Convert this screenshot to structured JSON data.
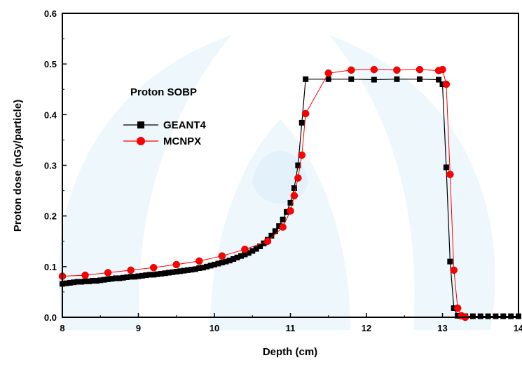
{
  "chart_data": {
    "type": "line",
    "title": "",
    "annotation": "Proton SOBP",
    "xlabel": "Depth (cm)",
    "ylabel": "Proton dose (nGy/particle)",
    "xlim": [
      8,
      14
    ],
    "ylim": [
      0,
      0.6
    ],
    "x_ticks": [
      8,
      9,
      10,
      11,
      12,
      13,
      14
    ],
    "x_tick_labels": [
      "8",
      "9",
      "10",
      "11",
      "12",
      "13",
      "14"
    ],
    "y_ticks": [
      0,
      0.1,
      0.2,
      0.3,
      0.4,
      0.5,
      0.6
    ],
    "y_tick_labels": [
      "0.0",
      "0.1",
      "0.2",
      "0.3",
      "0.4",
      "0.5",
      "0.6"
    ],
    "grid": false,
    "legend_position": "upper-left",
    "series": [
      {
        "name": "GEANT4",
        "color": "#000000",
        "marker": "square",
        "x": [
          8.0,
          8.05,
          8.1,
          8.15,
          8.2,
          8.25,
          8.3,
          8.35,
          8.4,
          8.45,
          8.5,
          8.55,
          8.6,
          8.65,
          8.7,
          8.75,
          8.8,
          8.85,
          8.9,
          8.95,
          9.0,
          9.05,
          9.1,
          9.15,
          9.2,
          9.25,
          9.3,
          9.35,
          9.4,
          9.45,
          9.5,
          9.55,
          9.6,
          9.65,
          9.7,
          9.75,
          9.8,
          9.85,
          9.9,
          9.95,
          10.0,
          10.05,
          10.1,
          10.15,
          10.2,
          10.25,
          10.3,
          10.35,
          10.4,
          10.45,
          10.5,
          10.55,
          10.6,
          10.65,
          10.7,
          10.75,
          10.8,
          10.85,
          10.9,
          10.95,
          11.0,
          11.05,
          11.1,
          11.15,
          11.2,
          11.5,
          11.8,
          12.1,
          12.4,
          12.7,
          12.95,
          13.0,
          13.05,
          13.1,
          13.15,
          13.2,
          13.25,
          13.3,
          13.4,
          13.5,
          13.6,
          13.7,
          13.8,
          13.9,
          14.0
        ],
        "values": [
          0.066,
          0.067,
          0.068,
          0.069,
          0.07,
          0.07,
          0.071,
          0.071,
          0.072,
          0.072,
          0.073,
          0.074,
          0.075,
          0.076,
          0.077,
          0.077,
          0.078,
          0.079,
          0.08,
          0.08,
          0.081,
          0.082,
          0.083,
          0.084,
          0.084,
          0.085,
          0.086,
          0.087,
          0.088,
          0.089,
          0.09,
          0.091,
          0.092,
          0.093,
          0.094,
          0.095,
          0.097,
          0.098,
          0.1,
          0.102,
          0.104,
          0.106,
          0.108,
          0.11,
          0.112,
          0.115,
          0.118,
          0.121,
          0.124,
          0.127,
          0.131,
          0.135,
          0.14,
          0.146,
          0.153,
          0.161,
          0.17,
          0.18,
          0.193,
          0.208,
          0.226,
          0.255,
          0.3,
          0.384,
          0.47,
          0.47,
          0.47,
          0.469,
          0.47,
          0.47,
          0.469,
          0.46,
          0.296,
          0.11,
          0.018,
          0.003,
          0.002,
          0.002,
          0.002,
          0.002,
          0.002,
          0.002,
          0.002,
          0.002,
          0.002
        ]
      },
      {
        "name": "MCNPX",
        "color": "#ff0000",
        "marker": "circle",
        "x": [
          8.0,
          8.3,
          8.6,
          8.9,
          9.2,
          9.5,
          9.8,
          10.1,
          10.4,
          10.7,
          10.9,
          11.0,
          11.05,
          11.1,
          11.15,
          11.2,
          11.5,
          11.8,
          12.1,
          12.4,
          12.7,
          12.95,
          13.0,
          13.05,
          13.1,
          13.15,
          13.2,
          13.25,
          13.3
        ],
        "values": [
          0.081,
          0.083,
          0.088,
          0.093,
          0.098,
          0.104,
          0.111,
          0.121,
          0.134,
          0.15,
          0.178,
          0.21,
          0.24,
          0.275,
          0.32,
          0.402,
          0.482,
          0.488,
          0.489,
          0.488,
          0.489,
          0.487,
          0.489,
          0.46,
          0.282,
          0.093,
          0.018,
          0.003,
          0.0
        ]
      }
    ]
  }
}
